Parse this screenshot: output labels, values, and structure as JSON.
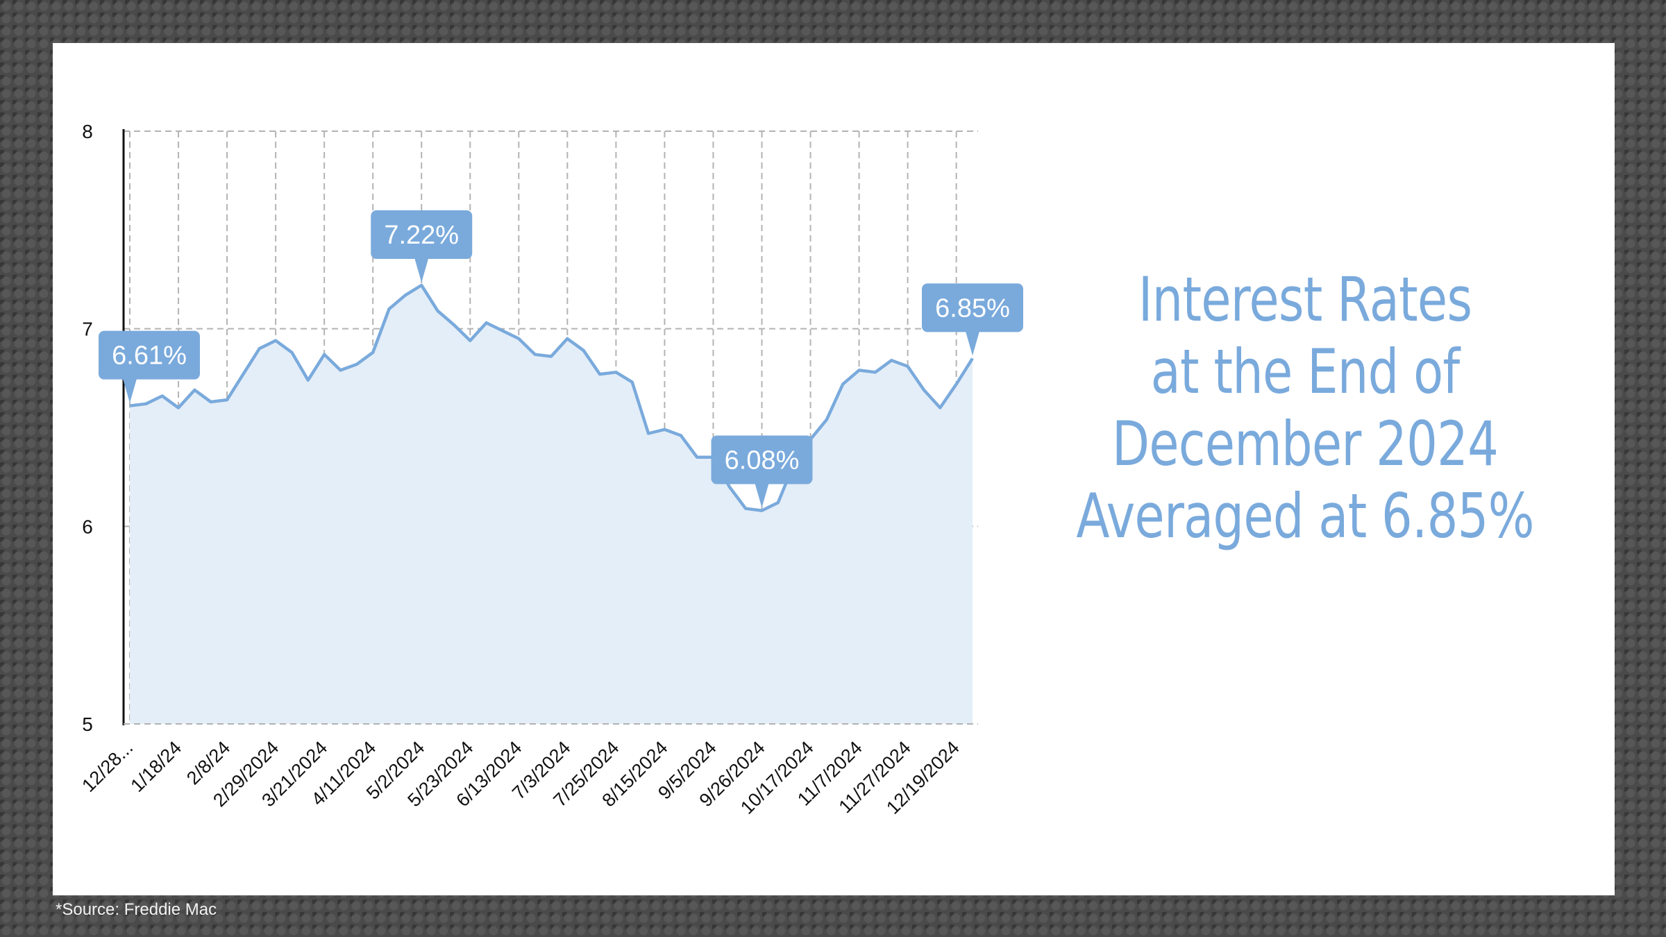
{
  "headline": {
    "line1": "Interest Rates",
    "line2": "at the End of",
    "line3": "December 2024",
    "line4": "Averaged at 6.85%"
  },
  "source": "*Source: Freddie Mac",
  "colors": {
    "line": "#7aaadc",
    "fill": "#e4eef8",
    "callout": "#7aaadc",
    "headline": "#7aaadc",
    "grid": "#b3b3b3"
  },
  "chart_data": {
    "type": "area",
    "title": "",
    "xlabel": "",
    "ylabel": "",
    "ylim": [
      5,
      8
    ],
    "yticks": [
      5,
      6,
      7,
      8
    ],
    "grid": true,
    "xtick_labels": [
      "12/28...",
      "1/18/24",
      "2/8/24",
      "2/29/2024",
      "3/21/2024",
      "4/11/2024",
      "5/2/2024",
      "5/23/2024",
      "6/13/2024",
      "7/3/2024",
      "7/25/2024",
      "8/15/2024",
      "9/5/2024",
      "9/26/2024",
      "10/17/2024",
      "11/7/2024",
      "11/27/2024",
      "12/19/2024"
    ],
    "xtick_positions": [
      0,
      3,
      6,
      9,
      12,
      15,
      18,
      21,
      24,
      27,
      30,
      33,
      36,
      39,
      42,
      45,
      48,
      51
    ],
    "values": [
      6.61,
      6.62,
      6.66,
      6.6,
      6.69,
      6.63,
      6.64,
      6.77,
      6.9,
      6.94,
      6.88,
      6.74,
      6.87,
      6.79,
      6.82,
      6.88,
      7.1,
      7.17,
      7.22,
      7.09,
      7.02,
      6.94,
      7.03,
      6.99,
      6.95,
      6.87,
      6.86,
      6.95,
      6.89,
      6.77,
      6.78,
      6.73,
      6.47,
      6.49,
      6.46,
      6.35,
      6.35,
      6.2,
      6.09,
      6.08,
      6.12,
      6.32,
      6.44,
      6.54,
      6.72,
      6.79,
      6.78,
      6.84,
      6.81,
      6.69,
      6.6,
      6.72,
      6.85
    ],
    "callouts": [
      {
        "index": 0,
        "label": "6.61%"
      },
      {
        "index": 18,
        "label": "7.22%"
      },
      {
        "index": 39,
        "label": "6.08%"
      },
      {
        "index": 52,
        "label": "6.85%"
      }
    ]
  }
}
